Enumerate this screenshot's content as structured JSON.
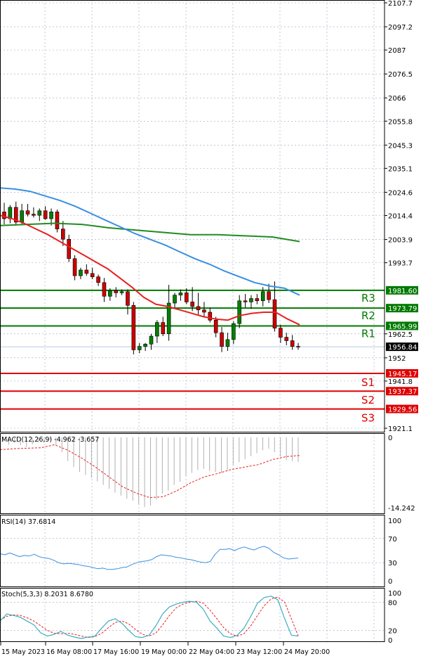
{
  "colors": {
    "bull": "#008000",
    "bear": "#cc0000",
    "resistance": "#007a00",
    "support": "#e00000",
    "current": "#000000",
    "ma_fast": "#e8201e",
    "ma_mid": "#3a8fe0",
    "ma_slow": "#228b22",
    "macd_hist": "#b0b0b0",
    "macd_signal": "#e8201e",
    "rsi": "#3a8fe0",
    "stoch_k": "#3aaec0",
    "stoch_d": "#e8201e",
    "grid": "#9aa6b8"
  },
  "chart_data": [
    {
      "type": "candlestick",
      "title": "",
      "ylim": [
        1921.1,
        2107.7
      ],
      "grid": true,
      "y_ticks": [
        2107.7,
        2097.2,
        2087.0,
        2076.5,
        2066.0,
        2055.8,
        2045.3,
        2035.1,
        2024.6,
        2014.4,
        2003.9,
        1993.7,
        1962.5,
        1952.0,
        1941.8,
        1921.1
      ],
      "x_labels": [
        "15 May 2023",
        "16 May 08:00",
        "17 May 16:00",
        "19 May 00:00",
        "22 May 04:00",
        "23 May 12:00",
        "24 May 20:00"
      ],
      "candles": [
        {
          "o": 2016.0,
          "h": 2020.0,
          "l": 2010.5,
          "c": 2013.0
        },
        {
          "o": 2013.0,
          "h": 2019.0,
          "l": 2011.0,
          "c": 2018.0
        },
        {
          "o": 2018.0,
          "h": 2020.5,
          "l": 2010.0,
          "c": 2011.5
        },
        {
          "o": 2011.5,
          "h": 2019.5,
          "l": 2010.5,
          "c": 2016.5
        },
        {
          "o": 2016.5,
          "h": 2019.5,
          "l": 2014.0,
          "c": 2015.0
        },
        {
          "o": 2015.0,
          "h": 2018.0,
          "l": 2013.5,
          "c": 2014.5
        },
        {
          "o": 2014.5,
          "h": 2017.5,
          "l": 2012.0,
          "c": 2016.5
        },
        {
          "o": 2016.5,
          "h": 2018.5,
          "l": 2012.5,
          "c": 2013.0
        },
        {
          "o": 2013.0,
          "h": 2017.5,
          "l": 2010.0,
          "c": 2016.0
        },
        {
          "o": 2016.0,
          "h": 2017.0,
          "l": 2007.0,
          "c": 2008.5
        },
        {
          "o": 2008.5,
          "h": 2012.0,
          "l": 2001.0,
          "c": 2004.0
        },
        {
          "o": 2004.0,
          "h": 2006.0,
          "l": 1994.0,
          "c": 1995.5
        },
        {
          "o": 1995.5,
          "h": 1997.0,
          "l": 1986.0,
          "c": 1988.0
        },
        {
          "o": 1988.0,
          "h": 1991.5,
          "l": 1986.5,
          "c": 1990.5
        },
        {
          "o": 1990.5,
          "h": 1993.0,
          "l": 1988.0,
          "c": 1989.0
        },
        {
          "o": 1989.0,
          "h": 1991.5,
          "l": 1986.5,
          "c": 1987.5
        },
        {
          "o": 1987.5,
          "h": 1988.5,
          "l": 1983.5,
          "c": 1985.0
        },
        {
          "o": 1985.0,
          "h": 1987.0,
          "l": 1976.5,
          "c": 1979.0
        },
        {
          "o": 1979.0,
          "h": 1982.5,
          "l": 1977.0,
          "c": 1981.5
        },
        {
          "o": 1981.5,
          "h": 1983.0,
          "l": 1978.5,
          "c": 1980.5
        },
        {
          "o": 1980.5,
          "h": 1982.0,
          "l": 1979.5,
          "c": 1981.0
        },
        {
          "o": 1981.0,
          "h": 1982.0,
          "l": 1971.0,
          "c": 1975.0
        },
        {
          "o": 1975.0,
          "h": 1976.5,
          "l": 1953.5,
          "c": 1955.5
        },
        {
          "o": 1955.5,
          "h": 1958.5,
          "l": 1954.0,
          "c": 1957.0
        },
        {
          "o": 1957.0,
          "h": 1958.5,
          "l": 1955.0,
          "c": 1958.0
        },
        {
          "o": 1958.0,
          "h": 1962.5,
          "l": 1955.5,
          "c": 1961.5
        },
        {
          "o": 1961.5,
          "h": 1968.5,
          "l": 1958.5,
          "c": 1967.5
        },
        {
          "o": 1967.5,
          "h": 1970.0,
          "l": 1961.5,
          "c": 1962.5
        },
        {
          "o": 1962.5,
          "h": 1984.0,
          "l": 1959.5,
          "c": 1976.0
        },
        {
          "o": 1976.0,
          "h": 1980.5,
          "l": 1974.0,
          "c": 1979.5
        },
        {
          "o": 1979.5,
          "h": 1982.0,
          "l": 1977.0,
          "c": 1980.5
        },
        {
          "o": 1980.5,
          "h": 1982.5,
          "l": 1975.5,
          "c": 1976.5
        },
        {
          "o": 1976.5,
          "h": 1983.0,
          "l": 1972.5,
          "c": 1974.5
        },
        {
          "o": 1974.5,
          "h": 1980.5,
          "l": 1971.0,
          "c": 1973.0
        },
        {
          "o": 1973.0,
          "h": 1976.5,
          "l": 1970.0,
          "c": 1972.0
        },
        {
          "o": 1972.0,
          "h": 1974.0,
          "l": 1967.5,
          "c": 1968.5
        },
        {
          "o": 1968.5,
          "h": 1970.0,
          "l": 1961.0,
          "c": 1963.0
        },
        {
          "o": 1963.0,
          "h": 1965.5,
          "l": 1954.5,
          "c": 1957.0
        },
        {
          "o": 1957.0,
          "h": 1963.0,
          "l": 1955.0,
          "c": 1960.0
        },
        {
          "o": 1960.0,
          "h": 1968.0,
          "l": 1958.0,
          "c": 1967.0
        },
        {
          "o": 1967.0,
          "h": 1979.5,
          "l": 1965.0,
          "c": 1977.0
        },
        {
          "o": 1977.0,
          "h": 1980.0,
          "l": 1974.0,
          "c": 1976.5
        },
        {
          "o": 1976.5,
          "h": 1979.5,
          "l": 1973.5,
          "c": 1978.0
        },
        {
          "o": 1978.0,
          "h": 1980.0,
          "l": 1975.5,
          "c": 1977.0
        },
        {
          "o": 1977.0,
          "h": 1983.0,
          "l": 1974.5,
          "c": 1981.0
        },
        {
          "o": 1981.0,
          "h": 1984.5,
          "l": 1976.0,
          "c": 1977.5
        },
        {
          "o": 1977.5,
          "h": 1985.5,
          "l": 1963.5,
          "c": 1965.0
        },
        {
          "o": 1965.0,
          "h": 1966.5,
          "l": 1958.5,
          "c": 1961.0
        },
        {
          "o": 1961.0,
          "h": 1963.0,
          "l": 1957.5,
          "c": 1959.5
        },
        {
          "o": 1959.5,
          "h": 1962.0,
          "l": 1955.5,
          "c": 1957.0
        },
        {
          "o": 1957.0,
          "h": 1958.5,
          "l": 1955.5,
          "c": 1956.84
        }
      ],
      "ma_fast": [
        2014.5,
        2013.0,
        2011.0,
        2008.5,
        2006.0,
        2003.0,
        2000.0,
        1997.0,
        1994.0,
        1991.0,
        1987.0,
        1983.0,
        1978.5,
        1975.5,
        1974.5,
        1973.0,
        1971.5,
        1970.0,
        1969.0,
        1968.5,
        1970.5,
        1971.5,
        1972.0,
        1972.0,
        1969.0,
        1966.5
      ],
      "ma_mid": [
        2026.5,
        2026.0,
        2025.0,
        2023.0,
        2021.0,
        2018.5,
        2015.5,
        2012.5,
        2009.5,
        2006.5,
        2004.0,
        2001.5,
        1998.5,
        1995.5,
        1993.0,
        1990.0,
        1987.5,
        1985.0,
        1983.5,
        1982.5,
        1979.5
      ],
      "ma_slow": [
        2010.0,
        2010.5,
        2011.0,
        2010.5,
        2009.0,
        2008.0,
        2007.0,
        2006.0,
        2006.0,
        2005.5,
        2005.0,
        2003.0
      ],
      "levels": [
        {
          "name": "R3",
          "value": 1981.6,
          "label": "1981.60",
          "kind": "resistance"
        },
        {
          "name": "R2",
          "value": 1973.79,
          "label": "1973.79",
          "kind": "resistance"
        },
        {
          "name": "R1",
          "value": 1965.99,
          "label": "1965.99",
          "kind": "resistance"
        },
        {
          "name": "S1",
          "value": 1945.17,
          "label": "1945.17",
          "kind": "support"
        },
        {
          "name": "S2",
          "value": 1937.37,
          "label": "1937.37",
          "kind": "support"
        },
        {
          "name": "S3",
          "value": 1929.56,
          "label": "1929.56",
          "kind": "support"
        }
      ],
      "current_price": 1956.84,
      "current_label": "1956.84"
    },
    {
      "type": "bar",
      "title": "MACD(12,26,9) -4.962 -3.657",
      "ylim": [
        -14.242,
        0
      ],
      "y_ticks": [
        "0",
        "-14.242"
      ],
      "histogram": [
        -1.0,
        -1.5,
        -1.2,
        -1.6,
        -1.9,
        -1.4,
        -1.0,
        -0.8,
        -0.5,
        -1.5,
        -3.0,
        -4.8,
        -6.0,
        -7.0,
        -7.6,
        -8.2,
        -8.9,
        -9.6,
        -10.4,
        -11.2,
        -11.8,
        -12.4,
        -12.8,
        -13.6,
        -14.1,
        -13.8,
        -12.6,
        -11.4,
        -10.8,
        -9.6,
        -9.0,
        -7.8,
        -7.2,
        -6.6,
        -6.4,
        -6.8,
        -7.0,
        -7.2,
        -6.6,
        -5.6,
        -5.0,
        -4.4,
        -3.8,
        -3.2,
        -2.6,
        -2.3,
        -3.0,
        -3.9,
        -4.6,
        -4.8,
        -4.962
      ],
      "signal": [
        -2.5,
        -2.3,
        -2.2,
        -2.1,
        -1.5,
        -2.6,
        -4.2,
        -6.0,
        -8.0,
        -10.0,
        -11.3,
        -12.2,
        -12.0,
        -10.8,
        -9.2,
        -8.0,
        -7.3,
        -6.5,
        -6.0,
        -5.5,
        -4.5,
        -3.9,
        -3.657
      ]
    },
    {
      "type": "line",
      "title": "RSI(14) 37.6814",
      "ylim": [
        0,
        100
      ],
      "y_ticks": [
        "100",
        "70",
        "30",
        "0"
      ],
      "values": [
        45,
        43,
        46,
        43,
        40,
        42,
        41,
        44,
        40,
        38,
        37,
        34,
        30,
        28,
        29,
        28,
        27,
        25,
        24,
        22,
        20,
        21,
        19,
        19,
        20,
        22,
        23,
        27,
        30,
        32,
        33,
        35,
        40,
        43,
        42,
        41,
        39,
        38,
        36,
        35,
        33,
        31,
        30,
        32,
        44,
        52,
        52,
        53,
        50,
        54,
        56,
        53,
        51,
        55,
        57,
        54,
        47,
        43,
        38,
        36,
        37,
        37.68
      ]
    },
    {
      "type": "line",
      "title": "Stoch(5,3,3) 8.2031 8.6780",
      "ylim": [
        0,
        100
      ],
      "y_ticks": [
        "100",
        "80",
        "20",
        "0"
      ],
      "k": [
        40,
        55,
        52,
        48,
        40,
        32,
        15,
        8,
        12,
        18,
        10,
        6,
        3,
        6,
        8,
        25,
        40,
        45,
        35,
        20,
        7,
        5,
        10,
        30,
        55,
        70,
        76,
        80,
        82,
        80,
        65,
        40,
        25,
        8,
        5,
        10,
        25,
        50,
        78,
        90,
        93,
        85,
        45,
        10,
        8.2031
      ],
      "d": [
        42,
        50,
        53,
        52,
        47,
        40,
        30,
        20,
        14,
        13,
        14,
        12,
        8,
        5,
        7,
        14,
        26,
        37,
        40,
        34,
        22,
        12,
        8,
        15,
        32,
        52,
        68,
        76,
        80,
        82,
        78,
        63,
        45,
        26,
        13,
        8,
        13,
        30,
        52,
        73,
        87,
        91,
        80,
        45,
        8.678
      ]
    }
  ]
}
